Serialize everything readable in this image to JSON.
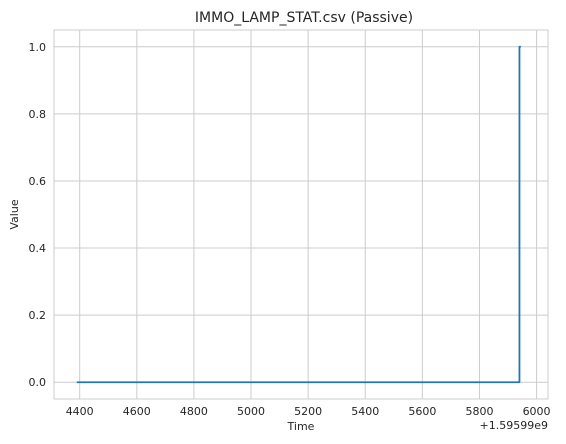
{
  "chart_data": {
    "type": "line",
    "title": "IMMO_LAMP_STAT.csv (Passive)",
    "xlabel": "Time",
    "ylabel": "Value",
    "x_offset_label": "+1.59599e9",
    "xlim": [
      4310,
      6040
    ],
    "ylim": [
      -0.05,
      1.05
    ],
    "xticks": [
      4400,
      4600,
      4800,
      5000,
      5200,
      5400,
      5600,
      5800,
      6000
    ],
    "xtick_labels": [
      "4400",
      "4600",
      "4800",
      "5000",
      "5200",
      "5400",
      "5600",
      "5800",
      "6000"
    ],
    "yticks": [
      0.0,
      0.2,
      0.4,
      0.6,
      0.8,
      1.0
    ],
    "ytick_labels": [
      "0.0",
      "0.2",
      "0.4",
      "0.6",
      "0.8",
      "1.0"
    ],
    "grid": true,
    "series": [
      {
        "color": "#1f77b4",
        "x": [
          4390,
          5940,
          5940,
          5945
        ],
        "y": [
          0,
          0,
          1,
          1
        ]
      }
    ]
  }
}
